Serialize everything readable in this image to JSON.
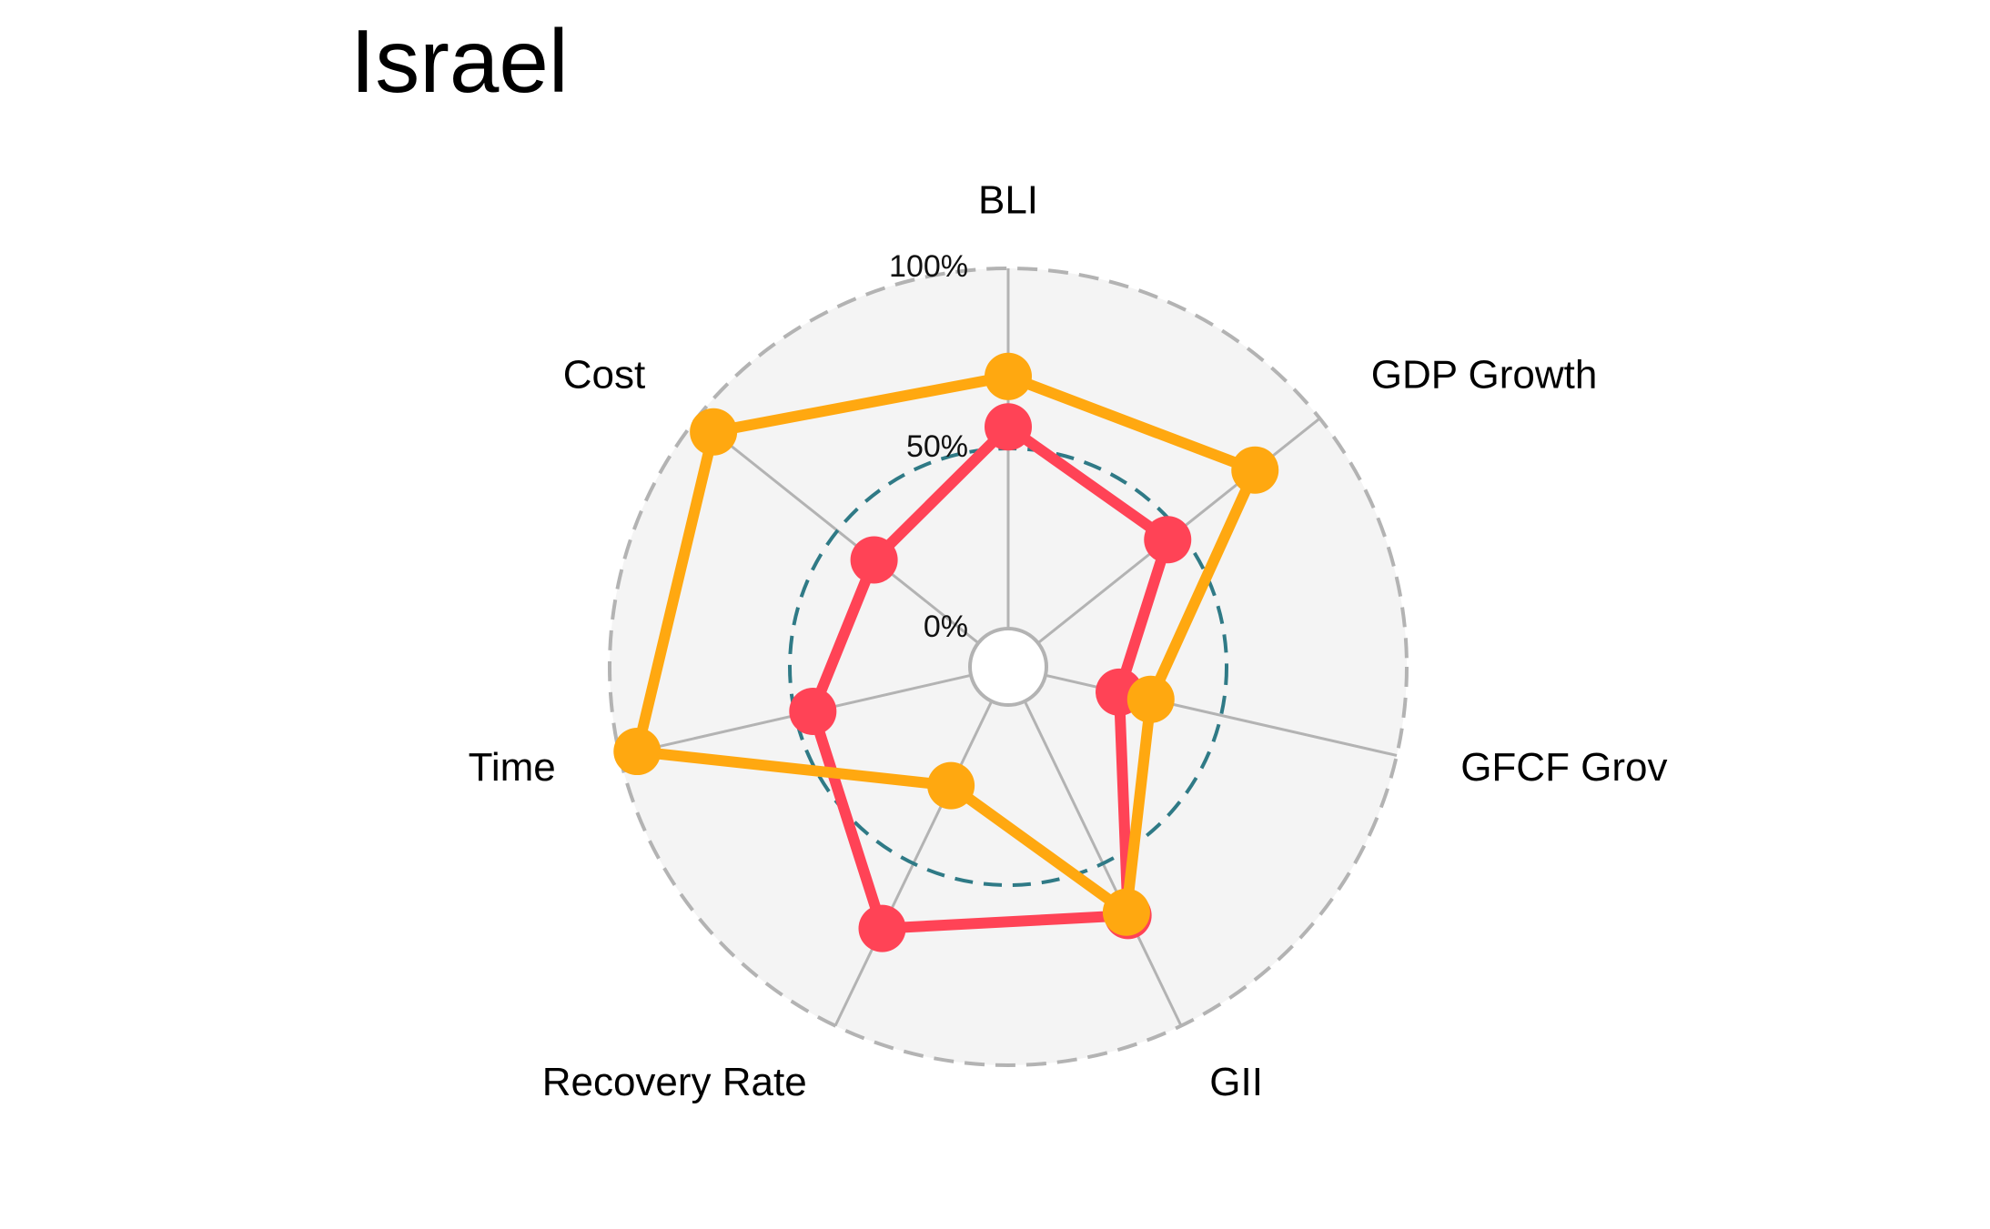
{
  "chart_data": {
    "type": "radar",
    "title": "Israel",
    "axes": [
      "BLI",
      "GDP Growth",
      "GFCF Growth",
      "GII",
      "Recovery Rate",
      "Time",
      "Cost"
    ],
    "axis_display": [
      "BLI",
      "GDP Growth",
      "GFCF Grov",
      "GII",
      "Recovery Rate",
      "Time",
      "Cost"
    ],
    "rlim": [
      0,
      100
    ],
    "r_ticks": [
      "0%",
      "50%",
      "100%"
    ],
    "reference_circle": 50,
    "series": [
      {
        "values": [
          56,
          46,
          21,
          66,
          70,
          45,
          37
        ],
        "color": "#FF4356"
      },
      {
        "values": [
          70,
          77,
          30,
          65,
          26,
          95,
          94
        ],
        "color": "#FFA810"
      }
    ],
    "colors": {
      "background_disk": "#F4F4F4",
      "spokes": "#B3B3B3",
      "outer_circle": "#B3B3B3",
      "reference_circle": "#2F7A86"
    }
  }
}
